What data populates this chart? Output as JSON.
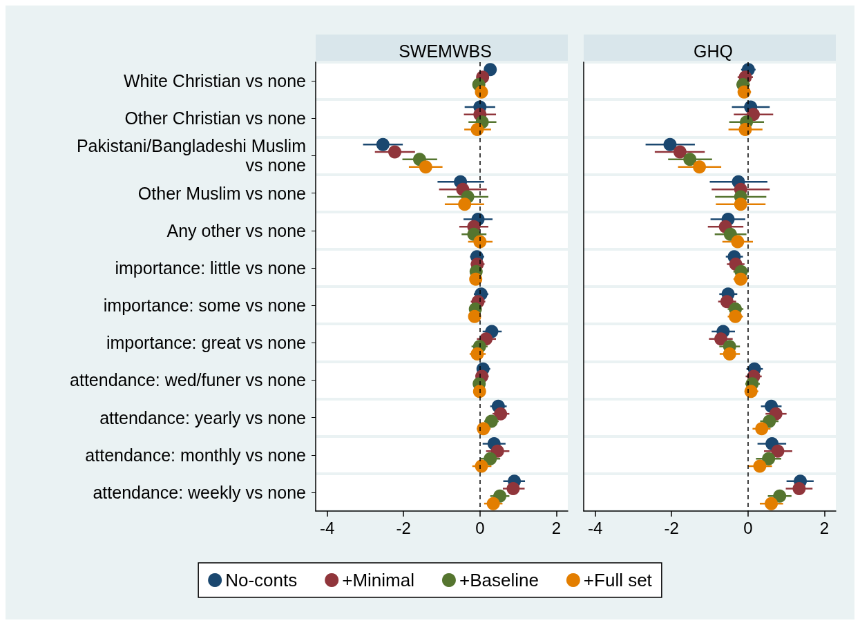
{
  "chart_data": [
    {
      "type": "scatter",
      "title": "SWEMWBS",
      "orientation": "horizontal",
      "marker": "circle",
      "grid": "y",
      "legend": "bottom",
      "categories": [
        "White Christian vs none",
        "Other Christian vs none",
        "Pakistani/Bangladeshi Muslim vs none",
        "Other Muslim vs none",
        "Any other vs none",
        "importance: little vs none",
        "importance: some vs none",
        "importance: great vs none",
        "attendance: wed/funer vs none",
        "attendance: yearly vs none",
        "attendance: monthly vs none",
        "attendance: weekly vs none"
      ],
      "xlim": [
        -4.3,
        2.3
      ],
      "xticks": [
        -4,
        -2,
        0,
        2
      ],
      "ref_lines": [
        {
          "axis": "x",
          "value": 0,
          "line_style": "dashed",
          "color": "#000000"
        }
      ],
      "series": [
        {
          "name": "No-conts",
          "color": "#1a476f",
          "values": [
            0.27,
            0.0,
            -2.54,
            -0.51,
            -0.05,
            -0.08,
            0.03,
            0.31,
            0.08,
            0.48,
            0.37,
            0.9
          ],
          "errors": [
            [
              0.13,
              0.43
            ],
            [
              -0.4,
              0.4
            ],
            [
              -3.06,
              -2.02
            ],
            [
              -1.11,
              0.11
            ],
            [
              -0.43,
              0.33
            ],
            [
              -0.26,
              0.11
            ],
            [
              -0.16,
              0.22
            ],
            [
              0.07,
              0.57
            ],
            [
              -0.07,
              0.27
            ],
            [
              0.27,
              0.7
            ],
            [
              0.07,
              0.67
            ],
            [
              0.61,
              1.18
            ]
          ]
        },
        {
          "name": "+Minimal",
          "color": "#90353b",
          "values": [
            0.07,
            0.0,
            -2.23,
            -0.45,
            -0.16,
            -0.07,
            -0.05,
            0.16,
            0.05,
            0.54,
            0.46,
            0.87
          ],
          "errors": [
            [
              -0.08,
              0.23
            ],
            [
              -0.42,
              0.42
            ],
            [
              -2.75,
              -1.7
            ],
            [
              -1.07,
              0.18
            ],
            [
              -0.54,
              0.22
            ],
            [
              -0.24,
              0.12
            ],
            [
              -0.24,
              0.14
            ],
            [
              -0.08,
              0.42
            ],
            [
              -0.11,
              0.23
            ],
            [
              0.33,
              0.77
            ],
            [
              0.16,
              0.77
            ],
            [
              0.6,
              1.17
            ]
          ]
        },
        {
          "name": "+Baseline",
          "color": "#55752f",
          "values": [
            -0.03,
            0.06,
            -1.58,
            -0.32,
            -0.16,
            -0.1,
            -0.12,
            -0.01,
            -0.02,
            0.3,
            0.27,
            0.52
          ],
          "errors": [
            [
              -0.15,
              0.1
            ],
            [
              -0.3,
              0.43
            ],
            [
              -2.03,
              -1.12
            ],
            [
              -0.86,
              0.22
            ],
            [
              -0.48,
              0.17
            ],
            [
              -0.25,
              0.06
            ],
            [
              -0.28,
              0.04
            ],
            [
              -0.22,
              0.2
            ],
            [
              -0.17,
              0.13
            ],
            [
              0.11,
              0.49
            ],
            [
              0.01,
              0.53
            ],
            [
              0.27,
              0.77
            ]
          ]
        },
        {
          "name": "+Full set",
          "color": "#e37e00",
          "values": [
            0.04,
            -0.07,
            -1.42,
            -0.4,
            0.0,
            -0.11,
            -0.14,
            -0.07,
            -0.01,
            0.09,
            0.04,
            0.35
          ],
          "errors": [
            [
              -0.08,
              0.16
            ],
            [
              -0.41,
              0.29
            ],
            [
              -1.86,
              -0.98
            ],
            [
              -0.92,
              0.11
            ],
            [
              -0.31,
              0.33
            ],
            [
              -0.25,
              0.02
            ],
            [
              -0.3,
              0.0
            ],
            [
              -0.27,
              0.15
            ],
            [
              -0.14,
              0.13
            ],
            [
              -0.08,
              0.28
            ],
            [
              -0.2,
              0.3
            ],
            [
              0.11,
              0.59
            ]
          ]
        }
      ]
    },
    {
      "type": "scatter",
      "title": "GHQ",
      "orientation": "horizontal",
      "marker": "circle",
      "grid": "y",
      "tick_labels": "x",
      "categories": [
        null,
        null,
        null,
        null,
        null,
        null,
        null,
        null,
        null,
        null,
        null,
        null
      ],
      "xlim": [
        -4.3,
        2.3
      ],
      "xticks": [
        -4,
        -2,
        0,
        2
      ],
      "ref_lines": [
        {
          "axis": "x",
          "value": 0,
          "line_style": "dashed",
          "color": "#000000"
        }
      ],
      "series": [
        {
          "color": "#1a476f",
          "values": [
            0.01,
            0.07,
            -2.04,
            -0.25,
            -0.52,
            -0.36,
            -0.52,
            -0.65,
            0.17,
            0.61,
            0.63,
            1.37
          ],
          "errors": [
            [
              -0.18,
              0.2
            ],
            [
              -0.42,
              0.57
            ],
            [
              -2.68,
              -1.39
            ],
            [
              -1.0,
              0.51
            ],
            [
              -0.98,
              -0.07
            ],
            [
              -0.58,
              -0.13
            ],
            [
              -0.75,
              -0.28
            ],
            [
              -0.95,
              -0.34
            ],
            [
              -0.04,
              0.39
            ],
            [
              0.34,
              0.88
            ],
            [
              0.25,
              1.0
            ],
            [
              1.01,
              1.72
            ]
          ]
        },
        {
          "color": "#90353b",
          "values": [
            -0.07,
            0.14,
            -1.78,
            -0.19,
            -0.59,
            -0.32,
            -0.55,
            -0.71,
            0.15,
            0.73,
            0.78,
            1.34
          ],
          "errors": [
            [
              -0.27,
              0.13
            ],
            [
              -0.37,
              0.66
            ],
            [
              -2.44,
              -1.13
            ],
            [
              -0.95,
              0.57
            ],
            [
              -1.05,
              -0.12
            ],
            [
              -0.55,
              -0.09
            ],
            [
              -0.78,
              -0.31
            ],
            [
              -1.02,
              -0.4
            ],
            [
              -0.06,
              0.36
            ],
            [
              0.46,
              1.01
            ],
            [
              0.42,
              1.16
            ],
            [
              0.99,
              1.69
            ]
          ]
        },
        {
          "color": "#55752f",
          "values": [
            -0.13,
            -0.04,
            -1.52,
            -0.19,
            -0.46,
            -0.18,
            -0.33,
            -0.48,
            0.11,
            0.56,
            0.54,
            0.83
          ],
          "errors": [
            [
              -0.3,
              0.05
            ],
            [
              -0.49,
              0.42
            ],
            [
              -2.09,
              -0.94
            ],
            [
              -0.86,
              0.48
            ],
            [
              -0.87,
              -0.04
            ],
            [
              -0.38,
              0.02
            ],
            [
              -0.53,
              -0.12
            ],
            [
              -0.75,
              -0.21
            ],
            [
              -0.07,
              0.31
            ],
            [
              0.32,
              0.8
            ],
            [
              0.21,
              0.87
            ],
            [
              0.52,
              1.14
            ]
          ]
        },
        {
          "color": "#e37e00",
          "values": [
            -0.1,
            -0.07,
            -1.27,
            -0.19,
            -0.27,
            -0.19,
            -0.33,
            -0.48,
            0.08,
            0.36,
            0.31,
            0.61
          ],
          "errors": [
            [
              -0.27,
              0.08
            ],
            [
              -0.51,
              0.38
            ],
            [
              -1.83,
              -0.7
            ],
            [
              -0.84,
              0.46
            ],
            [
              -0.67,
              0.13
            ],
            [
              -0.38,
              0.0
            ],
            [
              -0.53,
              -0.13
            ],
            [
              -0.74,
              -0.21
            ],
            [
              -0.09,
              0.27
            ],
            [
              0.12,
              0.59
            ],
            [
              0.0,
              0.63
            ],
            [
              0.31,
              0.92
            ]
          ]
        }
      ]
    }
  ]
}
